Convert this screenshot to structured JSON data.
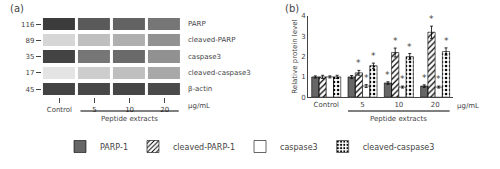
{
  "chart_data": [
    {
      "type": "heatmap",
      "title": "(a)",
      "categories": [
        "Control",
        "5",
        "10",
        "20"
      ],
      "xlabel": "μg/mL",
      "rows": [
        "PARP",
        "cleaved-PARP",
        "caspase3",
        "cleaved-caspase3",
        "β-actin"
      ],
      "kda": [
        116,
        89,
        35,
        17,
        45
      ],
      "values": [
        [
          0.85,
          0.72,
          0.68,
          0.6
        ],
        [
          0.18,
          0.28,
          0.35,
          0.48
        ],
        [
          0.82,
          0.6,
          0.65,
          0.48
        ],
        [
          0.12,
          0.22,
          0.28,
          0.38
        ],
        [
          0.82,
          0.8,
          0.81,
          0.79
        ]
      ],
      "grid": false,
      "annotations": [
        {
          "text": "Peptide extracts",
          "categories": [
            "5",
            "10",
            "20"
          ]
        }
      ]
    },
    {
      "type": "bar",
      "title": "(b)",
      "categories": [
        "Control",
        "5",
        "10",
        "20"
      ],
      "xlabel": "μg/mL",
      "ylabel": "Relative protein level",
      "ylim": [
        0,
        4
      ],
      "yticks": [
        0,
        1,
        2,
        3,
        4
      ],
      "grid": false,
      "legend": "bottom",
      "series": [
        {
          "name": "PARP-1",
          "color": "#666666",
          "values": [
            1.0,
            1.0,
            0.7,
            0.55
          ],
          "errors": [
            0.05,
            0.07,
            0.06,
            0.06
          ],
          "notes": [
            null,
            null,
            "*",
            "*"
          ]
        },
        {
          "name": "cleaved-PARP-1",
          "color": "#999999",
          "values": [
            1.0,
            1.2,
            2.2,
            3.2
          ],
          "errors": [
            0.08,
            0.12,
            0.22,
            0.3
          ],
          "notes": [
            null,
            "*",
            "*",
            "*"
          ]
        },
        {
          "name": "caspase3",
          "color": "#ffffff",
          "values": [
            1.0,
            0.55,
            0.5,
            0.5
          ],
          "errors": [
            0.05,
            0.07,
            0.05,
            0.05
          ],
          "notes": [
            null,
            "*",
            "*",
            "*"
          ]
        },
        {
          "name": "cleaved-caspase3",
          "color": "#cccccc",
          "values": [
            1.0,
            1.55,
            2.0,
            2.25
          ],
          "errors": [
            0.08,
            0.13,
            0.15,
            0.18
          ],
          "notes": [
            null,
            "*",
            "*",
            "*"
          ]
        }
      ],
      "annotations": [
        {
          "text": "Peptide extracts",
          "categories": [
            "5",
            "10",
            "20"
          ]
        }
      ]
    }
  ]
}
